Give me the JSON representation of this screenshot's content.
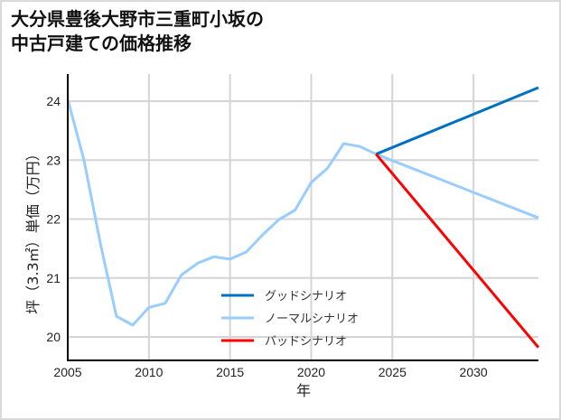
{
  "title": "大分県豊後大野市三重町小坂の\n中古戸建ての価格推移",
  "chart_data": {
    "type": "line",
    "title": "大分県豊後大野市三重町小坂の中古戸建ての価格推移",
    "xlabel": "年",
    "ylabel": "坪（3.3㎡）単価（万円）",
    "xlim": [
      2005,
      2034
    ],
    "ylim": [
      19.6,
      24.5
    ],
    "xticks": [
      2005,
      2010,
      2015,
      2020,
      2025,
      2030
    ],
    "yticks": [
      20,
      21,
      22,
      23,
      24
    ],
    "grid": true,
    "legend_position": "lower center",
    "series": [
      {
        "name": "グッドシナリオ",
        "color": "#0070c0",
        "x": [
          2024,
          2034
        ],
        "values": [
          23.1,
          24.23
        ]
      },
      {
        "name": "ノーマルシナリオ",
        "color": "#99ccff",
        "x": [
          2005,
          2006,
          2007,
          2008,
          2009,
          2010,
          2011,
          2012,
          2013,
          2014,
          2015,
          2016,
          2017,
          2018,
          2019,
          2020,
          2021,
          2022,
          2023,
          2024,
          2034
        ],
        "values": [
          24.03,
          23.0,
          21.6,
          20.35,
          20.2,
          20.5,
          20.57,
          21.05,
          21.25,
          21.36,
          21.32,
          21.44,
          21.73,
          21.99,
          22.15,
          22.62,
          22.86,
          23.28,
          23.23,
          23.1,
          22.02
        ]
      },
      {
        "name": "バッドシナリオ",
        "color": "#ff0000",
        "x": [
          2024,
          2034
        ],
        "values": [
          23.1,
          19.82
        ]
      }
    ]
  }
}
